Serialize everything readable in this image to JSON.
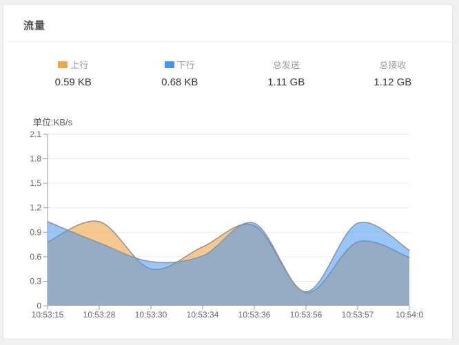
{
  "panel": {
    "title": "流量"
  },
  "stats": [
    {
      "label": "上行",
      "value": "0.59 KB",
      "swatch_color": "#F0A74B"
    },
    {
      "label": "下行",
      "value": "0.68 KB",
      "swatch_color": "#4596F0"
    },
    {
      "label": "总发送",
      "value": "1.11 GB"
    },
    {
      "label": "总接收",
      "value": "1.12 GB"
    }
  ],
  "chart_data": {
    "type": "area",
    "title": "流量",
    "unit_label": "单位:KB/s",
    "xlabel": "",
    "ylabel": "KB/s",
    "categories": [
      "10:53:15",
      "10:53:28",
      "10:53:30",
      "10:53:34",
      "10:53:36",
      "10:53:56",
      "10:53:57",
      "10:54:0"
    ],
    "series": [
      {
        "name": "上行",
        "color": "#F0A74B",
        "fill_opacity": 0.62,
        "values": [
          0.78,
          1.03,
          0.45,
          0.72,
          0.98,
          0.16,
          0.78,
          0.59
        ]
      },
      {
        "name": "下行",
        "color": "#4596F0",
        "fill_opacity": 0.55,
        "values": [
          1.03,
          0.77,
          0.54,
          0.61,
          1.01,
          0.17,
          1.01,
          0.68
        ]
      }
    ],
    "ylim": [
      0,
      2.1
    ],
    "y_ticks": [
      "0",
      "0.3",
      "0.6",
      "0.9",
      "1.2",
      "1.5",
      "1.8",
      "2.1"
    ],
    "grid": true,
    "smooth": true,
    "legend_position": "none",
    "line_color": "#909090",
    "grid_color": "#EAEAEA",
    "axis_color": "#999999"
  }
}
